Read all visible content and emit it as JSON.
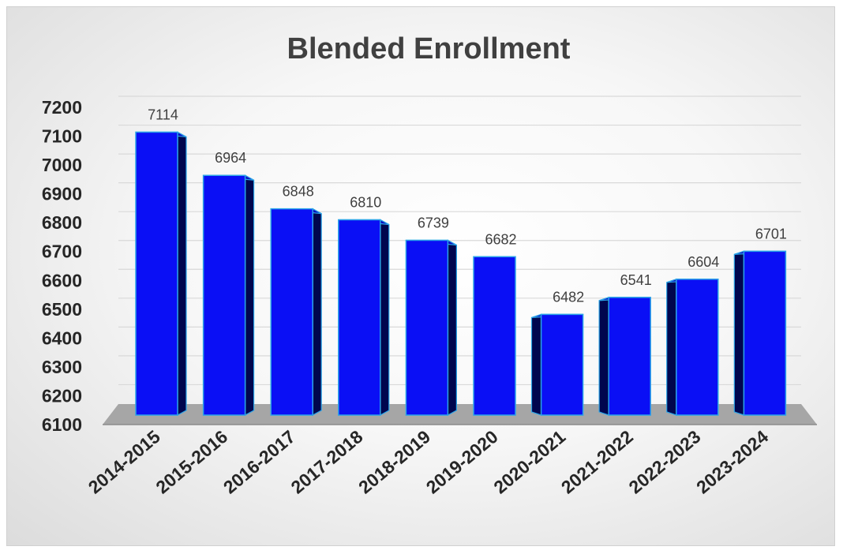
{
  "chart_data": {
    "type": "bar",
    "title": "Blended Enrollment",
    "categories": [
      "2014-2015",
      "2015-2016",
      "2016-2017",
      "2017-2018",
      "2018-2019",
      "2019-2020",
      "2020-2021",
      "2021-2022",
      "2022-2023",
      "2023-2024"
    ],
    "values": [
      7114,
      6964,
      6848,
      6810,
      6739,
      6682,
      6482,
      6541,
      6604,
      6701
    ],
    "yticks": [
      "6100",
      "6200",
      "6300",
      "6400",
      "6500",
      "6600",
      "6700",
      "6800",
      "6900",
      "7000",
      "7100",
      "7200"
    ],
    "ylim": [
      6100,
      7200
    ],
    "xlabel": "",
    "ylabel": "",
    "grid": true,
    "legend": "none",
    "colors": {
      "bar_front": "#0a0ff5",
      "bar_side": "#00064e",
      "bar_edge": "#2aa4e8",
      "floor": "#a6a6a6",
      "grid": "#d9d9d9"
    }
  }
}
